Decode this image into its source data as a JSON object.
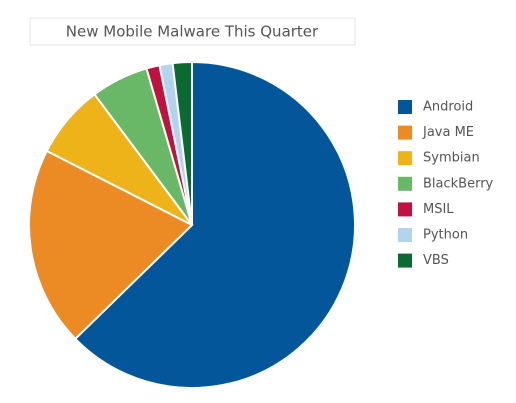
{
  "chart_data": {
    "type": "pie",
    "title": "New Mobile Malware This Quarter",
    "categories": [
      "Android",
      "Java ME",
      "Symbian",
      "BlackBerry",
      "MSIL",
      "Python",
      "VBS"
    ],
    "values": [
      62.7,
      19.8,
      7.3,
      5.7,
      1.3,
      1.3,
      1.9
    ],
    "colors": [
      "#03569a",
      "#ec8a23",
      "#efb31a",
      "#68b867",
      "#c0113f",
      "#b3d4ee",
      "#0a6a31"
    ],
    "legend": "right"
  }
}
